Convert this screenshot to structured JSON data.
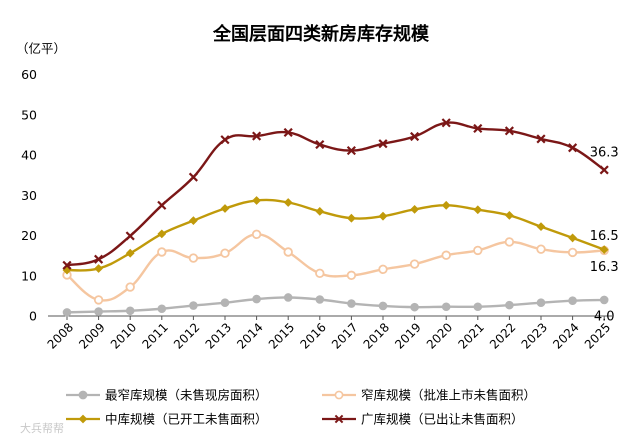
{
  "chart_data": {
    "type": "line",
    "title": "全国层面四类新房库存规模",
    "ylabel": "（亿平）",
    "xlabel": "",
    "ylim": [
      0,
      60
    ],
    "yticks": [
      0,
      10,
      20,
      30,
      40,
      50,
      60
    ],
    "grid": false,
    "legend_position": "bottom",
    "categories": [
      "2008",
      "2009",
      "2010",
      "2011",
      "2012",
      "2013",
      "2014",
      "2015",
      "2016",
      "2017",
      "2018",
      "2019",
      "2020",
      "2021",
      "2022",
      "2023",
      "2024",
      "2025"
    ],
    "series": [
      {
        "key": "narrowest",
        "name": "最窄库规模（未售现房面积）",
        "color": "#b4b4b4",
        "marker": "circle-filled",
        "values": [
          0.9,
          1.1,
          1.3,
          1.8,
          2.6,
          3.3,
          4.2,
          4.6,
          4.1,
          3.1,
          2.5,
          2.2,
          2.3,
          2.3,
          2.7,
          3.3,
          3.8,
          4.0
        ],
        "end_label": "4.0"
      },
      {
        "key": "narrow",
        "name": "窄库规模（批准上市未售面积）",
        "color": "#f5c6a0",
        "marker": "circle-open",
        "values": [
          10.2,
          4.0,
          7.2,
          15.9,
          14.4,
          15.6,
          20.3,
          15.9,
          10.6,
          10.1,
          11.6,
          12.9,
          15.1,
          16.3,
          18.4,
          16.6,
          15.8,
          16.3
        ],
        "end_label": "16.3"
      },
      {
        "key": "medium",
        "name": "中库规模（已开工未售面积）",
        "color": "#c09a0a",
        "marker": "diamond",
        "values": [
          11.4,
          11.8,
          15.6,
          20.4,
          23.7,
          26.7,
          28.7,
          28.2,
          26.0,
          24.3,
          24.8,
          26.5,
          27.5,
          26.4,
          25.0,
          22.2,
          19.4,
          16.5
        ],
        "end_label": "16.5"
      },
      {
        "key": "wide",
        "name": "广库规模（已出让未售面积）",
        "color": "#7b1717",
        "marker": "x",
        "values": [
          12.6,
          14.1,
          19.9,
          27.5,
          34.5,
          43.8,
          44.7,
          45.6,
          42.6,
          41.1,
          42.8,
          44.6,
          48.0,
          46.6,
          46.0,
          44.0,
          41.8,
          36.3
        ],
        "end_label": "36.3"
      }
    ]
  },
  "watermark_text": "大兵帮帮"
}
